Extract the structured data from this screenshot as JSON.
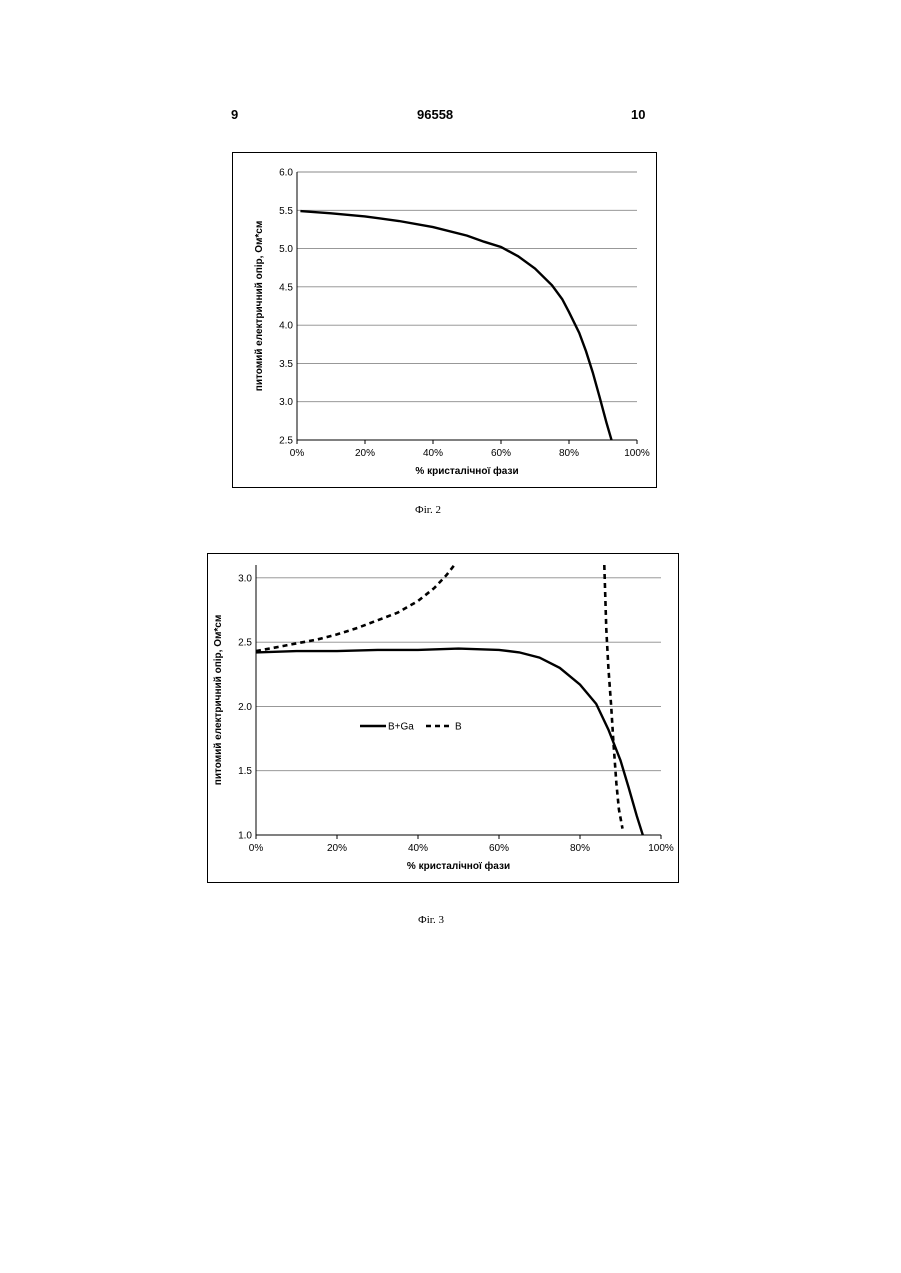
{
  "header": {
    "left_page": "9",
    "doc_number": "96558",
    "right_page": "10"
  },
  "chart_data": [
    {
      "type": "line",
      "caption": "Фіг. 2",
      "xlabel": "% кристалічної фази",
      "ylabel": "питомий електричний опір, Ом*см",
      "xlim": [
        0,
        100
      ],
      "ylim": [
        2.5,
        6.0
      ],
      "x_ticks": [
        "0%",
        "20%",
        "40%",
        "60%",
        "80%",
        "100%"
      ],
      "y_ticks": [
        "6.0",
        "5.5",
        "5.0",
        "4.5",
        "4.0",
        "3.5",
        "3.0",
        "2.5"
      ],
      "grid": true,
      "series": [
        {
          "style": "solid",
          "points": [
            [
              1,
              5.49
            ],
            [
              10,
              5.46
            ],
            [
              20,
              5.42
            ],
            [
              30,
              5.36
            ],
            [
              40,
              5.28
            ],
            [
              50,
              5.17
            ],
            [
              55,
              5.09
            ],
            [
              60,
              5.02
            ],
            [
              65,
              4.9
            ],
            [
              70,
              4.74
            ],
            [
              75,
              4.52
            ],
            [
              78,
              4.34
            ],
            [
              80,
              4.17
            ],
            [
              83,
              3.9
            ],
            [
              85,
              3.66
            ],
            [
              87,
              3.38
            ],
            [
              89,
              3.06
            ],
            [
              91,
              2.73
            ],
            [
              92.5,
              2.5
            ]
          ]
        }
      ]
    },
    {
      "type": "line",
      "caption": "Фіг. 3",
      "xlabel": "% кристалічної фази",
      "ylabel": "питомий електричний опір, Ом*см",
      "xlim": [
        0,
        100
      ],
      "ylim": [
        1.0,
        3.1
      ],
      "x_ticks": [
        "0%",
        "20%",
        "40%",
        "60%",
        "80%",
        "100%"
      ],
      "y_ticks": [
        "3.0",
        "2.5",
        "2.0",
        "1.5",
        "1.0"
      ],
      "grid": true,
      "legend": {
        "position": "center-left",
        "entries": [
          "B+Ga",
          "B"
        ]
      },
      "series": [
        {
          "name": "B+Ga",
          "style": "solid",
          "points": [
            [
              0,
              2.42
            ],
            [
              10,
              2.43
            ],
            [
              20,
              2.43
            ],
            [
              30,
              2.44
            ],
            [
              40,
              2.44
            ],
            [
              50,
              2.45
            ],
            [
              60,
              2.44
            ],
            [
              65,
              2.42
            ],
            [
              70,
              2.38
            ],
            [
              75,
              2.3
            ],
            [
              80,
              2.17
            ],
            [
              84,
              2.02
            ],
            [
              87,
              1.82
            ],
            [
              90,
              1.58
            ],
            [
              92,
              1.37
            ],
            [
              94,
              1.15
            ],
            [
              95.5,
              1.0
            ]
          ]
        },
        {
          "name": "B",
          "style": "dashed",
          "points_left": [
            [
              0,
              2.43
            ],
            [
              5,
              2.46
            ],
            [
              10,
              2.49
            ],
            [
              15,
              2.52
            ],
            [
              20,
              2.56
            ],
            [
              25,
              2.61
            ],
            [
              30,
              2.67
            ],
            [
              35,
              2.73
            ],
            [
              40,
              2.82
            ],
            [
              44,
              2.92
            ],
            [
              47,
              3.02
            ],
            [
              49,
              3.1
            ]
          ],
          "points_right": [
            [
              86,
              3.1
            ],
            [
              86.5,
              2.6
            ],
            [
              87,
              2.3
            ],
            [
              87.7,
              2.0
            ],
            [
              88.3,
              1.7
            ],
            [
              89,
              1.4
            ],
            [
              89.6,
              1.2
            ],
            [
              90.5,
              1.05
            ]
          ]
        }
      ]
    }
  ]
}
